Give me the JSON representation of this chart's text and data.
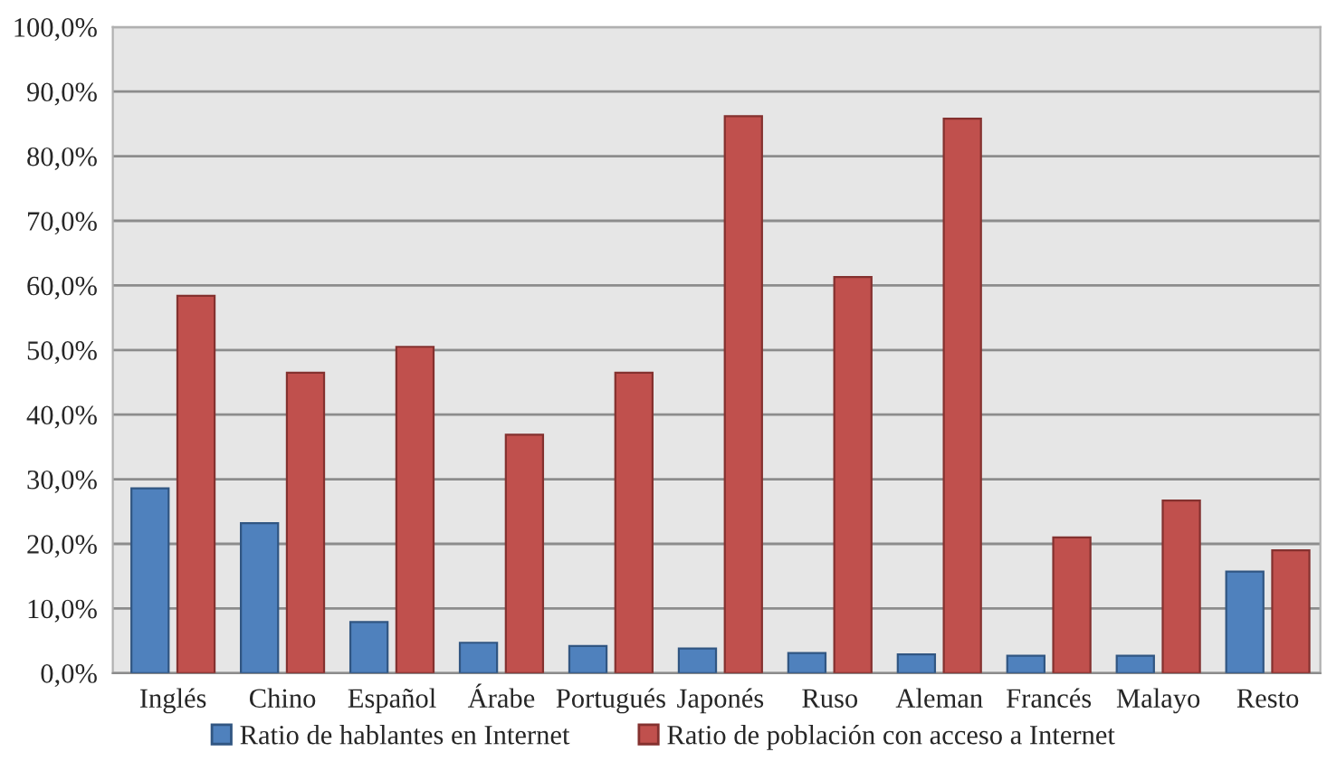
{
  "chart_data": {
    "type": "bar",
    "categories": [
      "Inglés",
      "Chino",
      "Español",
      "Árabe",
      "Portugués",
      "Japonés",
      "Ruso",
      "Aleman",
      "Francés",
      "Malayo",
      "Resto"
    ],
    "series": [
      {
        "name": "Ratio de hablantes en Internet",
        "color": "#4f81bd",
        "values": [
          28.6,
          23.2,
          7.9,
          4.7,
          4.2,
          3.8,
          3.1,
          2.9,
          2.7,
          2.7,
          15.7
        ]
      },
      {
        "name": "Ratio de población con acceso a Internet",
        "color": "#c0504d",
        "values": [
          58.4,
          46.5,
          50.5,
          36.9,
          46.5,
          86.2,
          61.3,
          85.8,
          21.0,
          26.7,
          19.0
        ]
      }
    ],
    "ylim": [
      0,
      100
    ],
    "yticks": [
      {
        "value": 0,
        "label": "0,0%"
      },
      {
        "value": 10,
        "label": "10,0%"
      },
      {
        "value": 20,
        "label": "20,0%"
      },
      {
        "value": 30,
        "label": "30,0%"
      },
      {
        "value": 40,
        "label": "40,0%"
      },
      {
        "value": 50,
        "label": "50,0%"
      },
      {
        "value": 60,
        "label": "60,0%"
      },
      {
        "value": 70,
        "label": "70,0%"
      },
      {
        "value": 80,
        "label": "80,0%"
      },
      {
        "value": 90,
        "label": "90,0%"
      },
      {
        "value": 100,
        "label": "100,0%"
      }
    ],
    "grid": "y",
    "legend": "bottom"
  }
}
